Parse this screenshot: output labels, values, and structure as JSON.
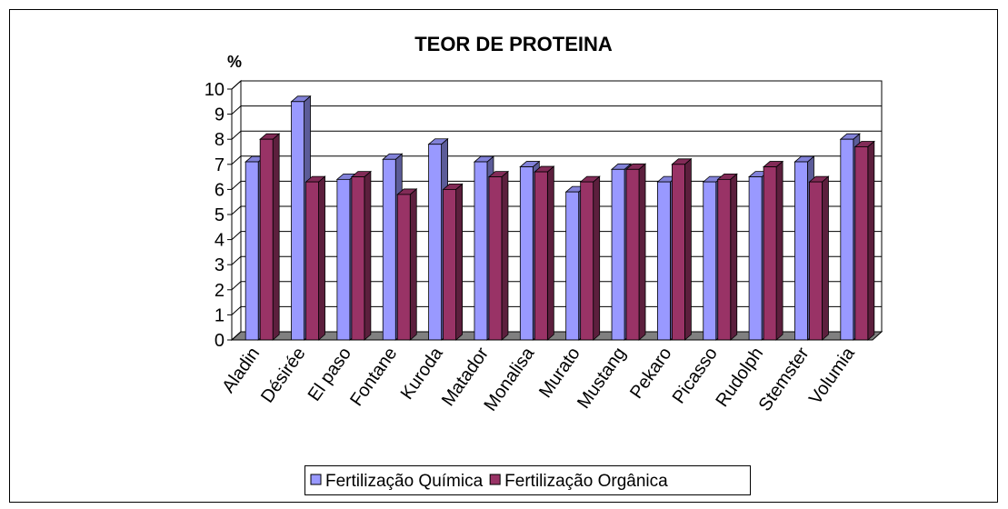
{
  "chart_data": {
    "type": "bar3d",
    "title": "TEOR DE PROTEINA",
    "y_label": "%",
    "categories": [
      "Aladin",
      "Désirée",
      "El paso",
      "Fontane",
      "Kuroda",
      "Matador",
      "Monalisa",
      "Murato",
      "Mustang",
      "Pekaro",
      "Picasso",
      "Rudolph",
      "Stemster",
      "Volumia"
    ],
    "series": [
      {
        "name": "Fertilização Química",
        "color": "#9999ff",
        "values": [
          7.1,
          9.5,
          6.4,
          7.2,
          7.8,
          7.1,
          6.9,
          5.9,
          6.8,
          6.3,
          6.3,
          6.5,
          7.1,
          8.0
        ]
      },
      {
        "name": "Fertilização Orgânica",
        "color": "#993366",
        "values": [
          8.0,
          6.3,
          6.5,
          5.8,
          6.0,
          6.5,
          6.7,
          6.3,
          6.8,
          7.0,
          6.4,
          6.9,
          6.3,
          7.7
        ]
      }
    ],
    "ylim": [
      0,
      10
    ],
    "yticks": [
      0,
      1,
      2,
      3,
      4,
      5,
      6,
      7,
      8,
      9,
      10
    ],
    "grid": true,
    "legend": "bottom"
  }
}
